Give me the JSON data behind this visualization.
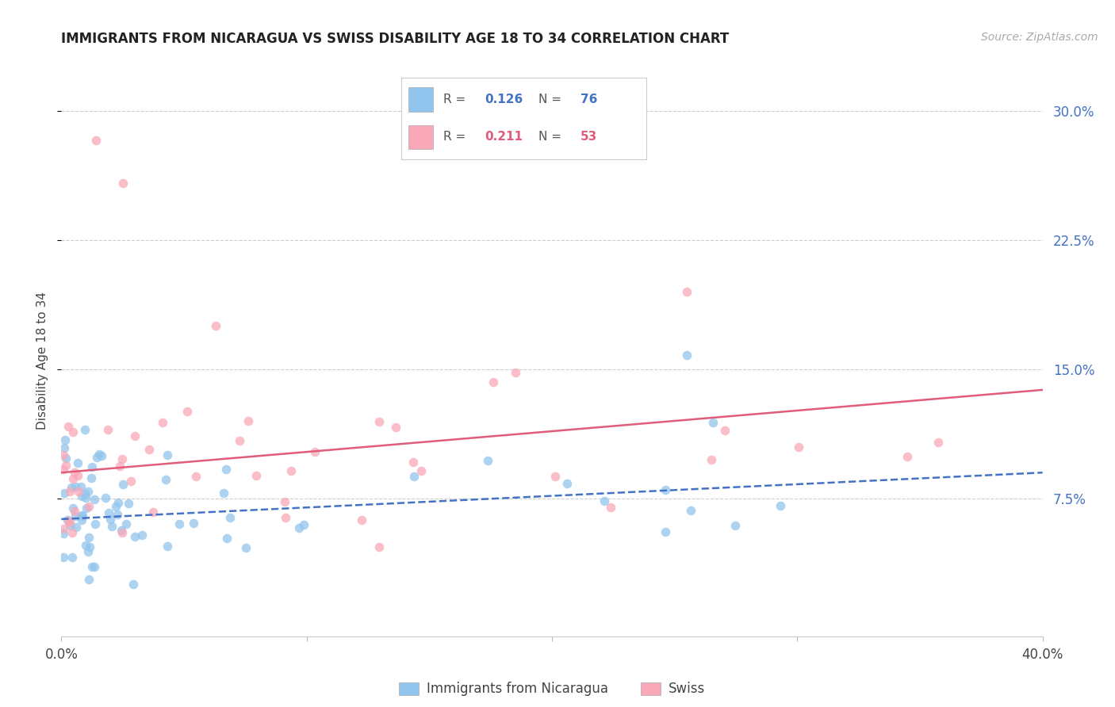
{
  "title": "IMMIGRANTS FROM NICARAGUA VS SWISS DISABILITY AGE 18 TO 34 CORRELATION CHART",
  "source": "Source: ZipAtlas.com",
  "ylabel": "Disability Age 18 to 34",
  "legend_label1": "Immigrants from Nicaragua",
  "legend_label2": "Swiss",
  "R1": "0.126",
  "N1": "76",
  "R2": "0.211",
  "N2": "53",
  "color_blue": "#92C5ED",
  "color_pink": "#F9A8B8",
  "line_blue": "#4472C4",
  "line_pink": "#E05C7A",
  "xlim": [
    0.0,
    0.4
  ],
  "ylim": [
    -0.005,
    0.315
  ],
  "yticks": [
    0.075,
    0.15,
    0.225,
    0.3
  ],
  "yticklabels": [
    "7.5%",
    "15.0%",
    "22.5%",
    "30.0%"
  ],
  "xticks": [
    0.0,
    0.1,
    0.2,
    0.3,
    0.4
  ],
  "xticklabels": [
    "0.0%",
    "",
    "",
    "",
    "40.0%"
  ],
  "background_color": "#FFFFFF",
  "title_fontsize": 12,
  "source_fontsize": 10,
  "tick_fontsize": 12,
  "ylabel_fontsize": 11
}
